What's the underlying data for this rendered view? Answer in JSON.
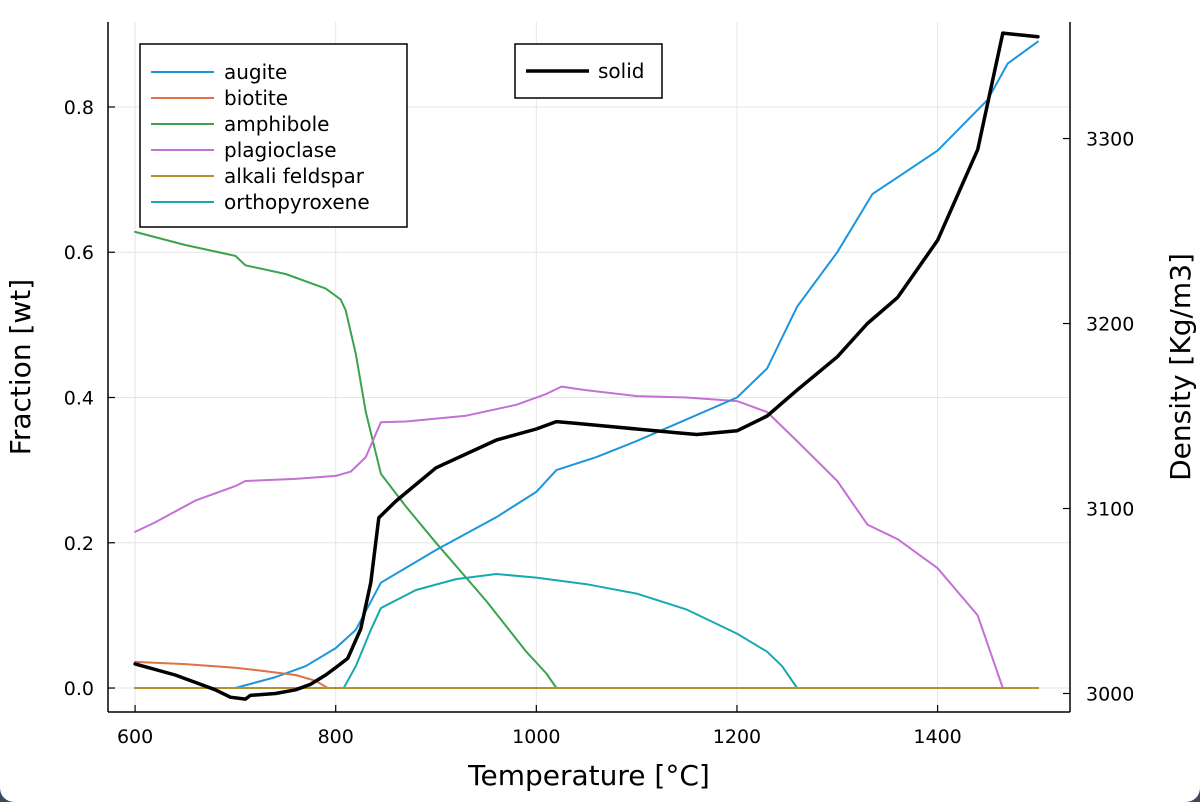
{
  "chart_data": {
    "type": "line",
    "xlabel": "Temperature [°C]",
    "ylabel": "Fraction [wt]",
    "y2label": "Density [Kg/m3]",
    "xlim": [
      573,
      1532
    ],
    "ylim": [
      -0.033,
      0.917
    ],
    "y2lim": [
      2990,
      3363
    ],
    "x_ticks": [
      600,
      800,
      1000,
      1200,
      1400
    ],
    "y_ticks": [
      0.0,
      0.2,
      0.4,
      0.6,
      0.8
    ],
    "y2_ticks": [
      3000,
      3100,
      3200,
      3300
    ],
    "grid": true,
    "legend_left": "top-left",
    "legend_right": "top-center",
    "series": [
      {
        "name": "augite",
        "color": "#1a96dd",
        "axis": "left",
        "points": [
          [
            600,
            0
          ],
          [
            700,
            0
          ],
          [
            740,
            0.015
          ],
          [
            770,
            0.03
          ],
          [
            800,
            0.055
          ],
          [
            820,
            0.08
          ],
          [
            845,
            0.145
          ],
          [
            900,
            0.19
          ],
          [
            960,
            0.235
          ],
          [
            1000,
            0.27
          ],
          [
            1020,
            0.3
          ],
          [
            1060,
            0.318
          ],
          [
            1100,
            0.34
          ],
          [
            1150,
            0.37
          ],
          [
            1200,
            0.4
          ],
          [
            1230,
            0.44
          ],
          [
            1260,
            0.525
          ],
          [
            1300,
            0.6
          ],
          [
            1335,
            0.68
          ],
          [
            1400,
            0.74
          ],
          [
            1450,
            0.81
          ],
          [
            1470,
            0.86
          ],
          [
            1500,
            0.89
          ]
        ]
      },
      {
        "name": "biotite",
        "color": "#e26f46",
        "axis": "left",
        "points": [
          [
            600,
            0.036
          ],
          [
            650,
            0.033
          ],
          [
            700,
            0.028
          ],
          [
            730,
            0.023
          ],
          [
            760,
            0.018
          ],
          [
            780,
            0.01
          ],
          [
            792,
            0
          ],
          [
            1500,
            0
          ]
        ]
      },
      {
        "name": "amphibole",
        "color": "#3ba34d",
        "axis": "left",
        "points": [
          [
            600,
            0.628
          ],
          [
            650,
            0.61
          ],
          [
            700,
            0.595
          ],
          [
            710,
            0.582
          ],
          [
            750,
            0.57
          ],
          [
            790,
            0.55
          ],
          [
            805,
            0.535
          ],
          [
            810,
            0.52
          ],
          [
            820,
            0.46
          ],
          [
            830,
            0.38
          ],
          [
            845,
            0.295
          ],
          [
            870,
            0.25
          ],
          [
            900,
            0.2
          ],
          [
            950,
            0.12
          ],
          [
            990,
            0.05
          ],
          [
            1010,
            0.02
          ],
          [
            1020,
            0
          ],
          [
            1500,
            0
          ]
        ]
      },
      {
        "name": "plagioclase",
        "color": "#c471d4",
        "axis": "left",
        "points": [
          [
            600,
            0.215
          ],
          [
            620,
            0.228
          ],
          [
            660,
            0.258
          ],
          [
            700,
            0.278
          ],
          [
            710,
            0.285
          ],
          [
            760,
            0.288
          ],
          [
            800,
            0.292
          ],
          [
            815,
            0.298
          ],
          [
            830,
            0.318
          ],
          [
            845,
            0.366
          ],
          [
            870,
            0.367
          ],
          [
            930,
            0.375
          ],
          [
            980,
            0.39
          ],
          [
            1010,
            0.405
          ],
          [
            1025,
            0.415
          ],
          [
            1050,
            0.41
          ],
          [
            1100,
            0.402
          ],
          [
            1150,
            0.4
          ],
          [
            1200,
            0.395
          ],
          [
            1230,
            0.38
          ],
          [
            1260,
            0.34
          ],
          [
            1300,
            0.285
          ],
          [
            1330,
            0.225
          ],
          [
            1360,
            0.205
          ],
          [
            1400,
            0.165
          ],
          [
            1440,
            0.1
          ],
          [
            1465,
            0
          ],
          [
            1500,
            0
          ]
        ]
      },
      {
        "name": "alkali feldspar",
        "color": "#b39030",
        "axis": "left",
        "points": [
          [
            600,
            0
          ],
          [
            1500,
            0
          ]
        ]
      },
      {
        "name": "orthopyroxene",
        "color": "#15aab0",
        "axis": "left",
        "points": [
          [
            600,
            0
          ],
          [
            808,
            0
          ],
          [
            820,
            0.03
          ],
          [
            835,
            0.08
          ],
          [
            845,
            0.11
          ],
          [
            880,
            0.135
          ],
          [
            920,
            0.15
          ],
          [
            960,
            0.157
          ],
          [
            1000,
            0.152
          ],
          [
            1050,
            0.143
          ],
          [
            1100,
            0.13
          ],
          [
            1150,
            0.108
          ],
          [
            1200,
            0.075
          ],
          [
            1230,
            0.05
          ],
          [
            1245,
            0.03
          ],
          [
            1260,
            0
          ],
          [
            1500,
            0
          ]
        ]
      },
      {
        "name": "solid",
        "color": "#000000",
        "axis": "right",
        "points": [
          [
            600,
            3016
          ],
          [
            640,
            3010
          ],
          [
            660,
            3006
          ],
          [
            680,
            3002
          ],
          [
            695,
            2998
          ],
          [
            710,
            2997
          ],
          [
            715,
            2999
          ],
          [
            740,
            3000
          ],
          [
            760,
            3002
          ],
          [
            775,
            3005
          ],
          [
            790,
            3010
          ],
          [
            800,
            3014
          ],
          [
            812,
            3019
          ],
          [
            825,
            3035
          ],
          [
            835,
            3060
          ],
          [
            843,
            3095
          ],
          [
            860,
            3104
          ],
          [
            900,
            3122
          ],
          [
            960,
            3137
          ],
          [
            1000,
            3143
          ],
          [
            1020,
            3147
          ],
          [
            1040,
            3146
          ],
          [
            1060,
            3145
          ],
          [
            1100,
            3143
          ],
          [
            1140,
            3141
          ],
          [
            1160,
            3140
          ],
          [
            1200,
            3142
          ],
          [
            1230,
            3150
          ],
          [
            1260,
            3164
          ],
          [
            1300,
            3182
          ],
          [
            1330,
            3200
          ],
          [
            1360,
            3214
          ],
          [
            1400,
            3245
          ],
          [
            1440,
            3294
          ],
          [
            1465,
            3357
          ],
          [
            1500,
            3355
          ]
        ]
      }
    ]
  }
}
